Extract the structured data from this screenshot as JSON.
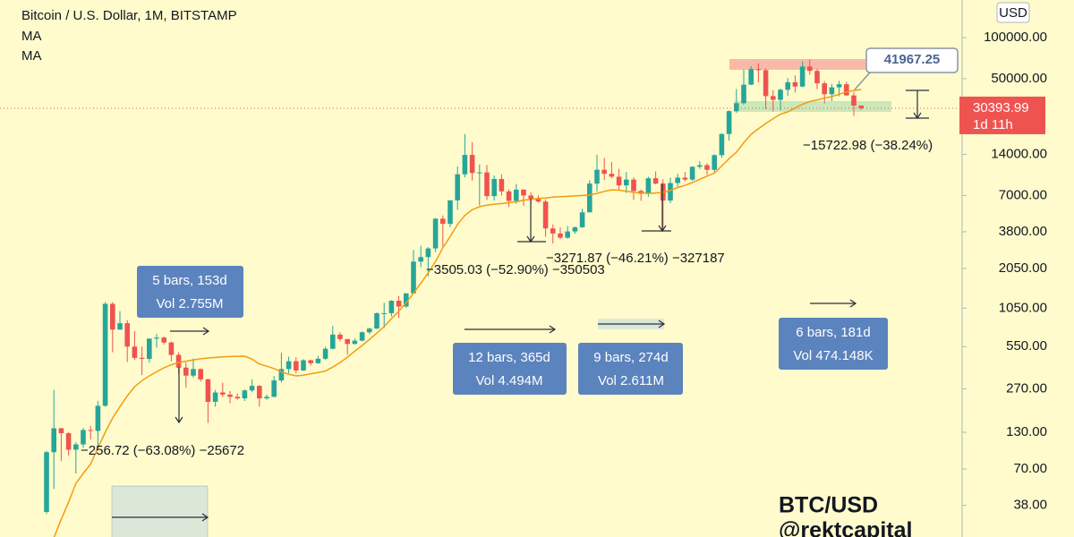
{
  "chart_data": {
    "type": "candlestick",
    "title": "Bitcoin / U.S. Dollar, 1M, BITSTAMP",
    "indicators": [
      "MA",
      "MA"
    ],
    "log": true,
    "ylim": [
      22.3,
      188000
    ],
    "yticks": [
      {
        "value": 38,
        "label": "38.00"
      },
      {
        "value": 70,
        "label": "70.00"
      },
      {
        "value": 130,
        "label": "130.00"
      },
      {
        "value": 270,
        "label": "270.00"
      },
      {
        "value": 550,
        "label": "550.00"
      },
      {
        "value": 1050,
        "label": "1050.00"
      },
      {
        "value": 2050,
        "label": "2050.00"
      },
      {
        "value": 3800,
        "label": "3800.00"
      },
      {
        "value": 7000,
        "label": "7000.00"
      },
      {
        "value": 14000,
        "label": "14000.00"
      },
      {
        "value": 50000,
        "label": "50000.00"
      },
      {
        "value": 100000,
        "label": "100000.00"
      }
    ],
    "currency": "USD",
    "up_color": "#26a69a",
    "down_color": "#ef5350",
    "ma_color": "#f39c12",
    "last_price": 30393.99,
    "countdown": "1d 11h",
    "callout": 41967.25,
    "ohlc": [
      [
        34,
        95,
        33,
        93
      ],
      [
        93,
        266,
        50,
        139
      ],
      [
        139,
        140,
        80,
        128
      ],
      [
        128,
        130,
        88,
        97
      ],
      [
        97,
        110,
        65,
        106
      ],
      [
        106,
        140,
        100,
        135
      ],
      [
        135,
        145,
        115,
        133
      ],
      [
        133,
        220,
        100,
        203
      ],
      [
        203,
        1163,
        200,
        1129
      ],
      [
        1129,
        1163,
        500,
        732
      ],
      [
        732,
        1000,
        730,
        815
      ],
      [
        815,
        860,
        425,
        550
      ],
      [
        550,
        715,
        440,
        455
      ],
      [
        455,
        550,
        340,
        447
      ],
      [
        447,
        630,
        420,
        629
      ],
      [
        629,
        680,
        540,
        640
      ],
      [
        640,
        650,
        570,
        589
      ],
      [
        589,
        600,
        430,
        478
      ],
      [
        478,
        500,
        350,
        386
      ],
      [
        386,
        420,
        275,
        337
      ],
      [
        337,
        450,
        325,
        377
      ],
      [
        377,
        380,
        305,
        317
      ],
      [
        317,
        320,
        152,
        217
      ],
      [
        217,
        265,
        200,
        254
      ],
      [
        254,
        300,
        235,
        245
      ],
      [
        245,
        260,
        212,
        236
      ],
      [
        236,
        250,
        225,
        230
      ],
      [
        230,
        268,
        220,
        263
      ],
      [
        263,
        317,
        255,
        284
      ],
      [
        284,
        287,
        200,
        230
      ],
      [
        230,
        245,
        225,
        236
      ],
      [
        236,
        335,
        235,
        311
      ],
      [
        311,
        495,
        300,
        377
      ],
      [
        377,
        465,
        350,
        430
      ],
      [
        430,
        460,
        350,
        368
      ],
      [
        368,
        445,
        365,
        437
      ],
      [
        437,
        440,
        400,
        416
      ],
      [
        416,
        470,
        412,
        448
      ],
      [
        448,
        550,
        440,
        530
      ],
      [
        530,
        780,
        525,
        673
      ],
      [
        673,
        700,
        600,
        624
      ],
      [
        624,
        625,
        480,
        575
      ],
      [
        575,
        630,
        570,
        608
      ],
      [
        608,
        710,
        600,
        700
      ],
      [
        700,
        755,
        680,
        745
      ],
      [
        745,
        980,
        740,
        963
      ],
      [
        963,
        1150,
        750,
        965
      ],
      [
        965,
        1200,
        915,
        1190
      ],
      [
        1190,
        1290,
        890,
        1080
      ],
      [
        1080,
        1350,
        1060,
        1348
      ],
      [
        1348,
        2800,
        1340,
        2300
      ],
      [
        2300,
        3000,
        2100,
        2480
      ],
      [
        2480,
        2930,
        1800,
        2870
      ],
      [
        2870,
        4800,
        2700,
        4735
      ],
      [
        4735,
        5000,
        2980,
        4340
      ],
      [
        4340,
        6470,
        4100,
        6450
      ],
      [
        6450,
        11400,
        5500,
        10000
      ],
      [
        10000,
        19666,
        9500,
        13860
      ],
      [
        13860,
        17200,
        9000,
        10220
      ],
      [
        10220,
        11800,
        5920,
        10320
      ],
      [
        10320,
        11700,
        6500,
        6925
      ],
      [
        6925,
        9800,
        6430,
        9240
      ],
      [
        9240,
        10000,
        7000,
        7500
      ],
      [
        7500,
        7780,
        5750,
        6390
      ],
      [
        6390,
        8500,
        6100,
        7730
      ],
      [
        7730,
        7760,
        5880,
        7000
      ],
      [
        7000,
        7400,
        6100,
        6625
      ],
      [
        6625,
        7000,
        6200,
        6320
      ],
      [
        6320,
        6550,
        3500,
        4020
      ],
      [
        4020,
        4300,
        3120,
        3690
      ],
      [
        3690,
        4100,
        3350,
        3440
      ],
      [
        3440,
        4200,
        3380,
        3820
      ],
      [
        3820,
        4150,
        3670,
        4100
      ],
      [
        4100,
        5600,
        4050,
        5270
      ],
      [
        5270,
        9070,
        5300,
        8550
      ],
      [
        8550,
        13880,
        7450,
        10800
      ],
      [
        10800,
        13200,
        9100,
        10080
      ],
      [
        10080,
        12300,
        9350,
        9600
      ],
      [
        9600,
        10950,
        7700,
        8300
      ],
      [
        8300,
        10400,
        7300,
        9150
      ],
      [
        9150,
        9500,
        6500,
        7550
      ],
      [
        7550,
        7750,
        6400,
        7200
      ],
      [
        7200,
        9600,
        6850,
        9350
      ],
      [
        9350,
        10500,
        8450,
        8550
      ],
      [
        8550,
        9200,
        3850,
        6430
      ],
      [
        6430,
        9450,
        6150,
        8630
      ],
      [
        8630,
        10080,
        8100,
        9450
      ],
      [
        9450,
        10400,
        8900,
        9140
      ],
      [
        9140,
        11450,
        8950,
        11350
      ],
      [
        11350,
        12480,
        10960,
        11650
      ],
      [
        11650,
        12050,
        9900,
        10780
      ],
      [
        10780,
        14000,
        10370,
        13800
      ],
      [
        13800,
        19900,
        13200,
        19700
      ],
      [
        19700,
        29300,
        17600,
        28950
      ],
      [
        28950,
        41950,
        28100,
        33100
      ],
      [
        33100,
        58400,
        32300,
        45200
      ],
      [
        45200,
        61800,
        44950,
        58800
      ],
      [
        58800,
        64900,
        47000,
        57700
      ],
      [
        57700,
        59500,
        30000,
        37300
      ],
      [
        37300,
        41300,
        28800,
        35040
      ],
      [
        35040,
        42300,
        29300,
        41500
      ],
      [
        41500,
        50500,
        37300,
        47100
      ],
      [
        47100,
        52900,
        39600,
        43800
      ],
      [
        43800,
        67000,
        43300,
        61300
      ],
      [
        61300,
        69000,
        53300,
        57000
      ],
      [
        57000,
        59100,
        42000,
        46200
      ],
      [
        46200,
        48000,
        33000,
        38500
      ],
      [
        38500,
        45800,
        34300,
        43200
      ],
      [
        43200,
        48200,
        37200,
        45500
      ],
      [
        45500,
        47500,
        37600,
        37700
      ],
      [
        37700,
        40000,
        26700,
        31800
      ],
      [
        31800,
        31900,
        29500,
        30393.99
      ]
    ],
    "ma": [
      null,
      22,
      30,
      40,
      55,
      65,
      76,
      100,
      130,
      165,
      200,
      240,
      280,
      310,
      336,
      360,
      385,
      405,
      421,
      430,
      440,
      448,
      454,
      458,
      462,
      465,
      467,
      468,
      445,
      410,
      395,
      380,
      360,
      345,
      336,
      340,
      348,
      355,
      365,
      390,
      420,
      460,
      510,
      560,
      620,
      690,
      770,
      880,
      1000,
      1150,
      1350,
      1600,
      1900,
      2300,
      2900,
      3500,
      4300,
      5000,
      5500,
      5800,
      5950,
      6050,
      6100,
      6200,
      6300,
      6450,
      6550,
      6650,
      6700,
      6800,
      6850,
      6900,
      6950,
      7000,
      7050,
      7250,
      7500,
      7700,
      7650,
      7500,
      7400,
      7300,
      7250,
      7300,
      7380,
      7600,
      8000,
      8300,
      8700,
      9200,
      9700,
      10200,
      11500,
      13000,
      14500,
      17000,
      19600,
      21500,
      23500,
      25500,
      27500,
      28600,
      30500,
      32500,
      34000,
      35000,
      36000,
      37000,
      38500,
      40000,
      41000,
      41700
    ],
    "measures": [
      [
        "5 bars, 153d",
        "Vol 2.755M"
      ],
      [
        "12 bars, 365d",
        "Vol 4.494M"
      ],
      [
        "9 bars, 274d",
        "Vol 2.611M"
      ],
      [
        "6 bars, 181d",
        "Vol 474.148K"
      ]
    ],
    "drops": [
      "−256.72 (−63.08%) −25672",
      "−3505.03 (−52.90%) −350503",
      "−3271.87 (−46.21%) −327187",
      "−15722.98 (−38.24%)"
    ],
    "watermark": [
      "BTC/USD",
      "@rektcapital"
    ]
  }
}
